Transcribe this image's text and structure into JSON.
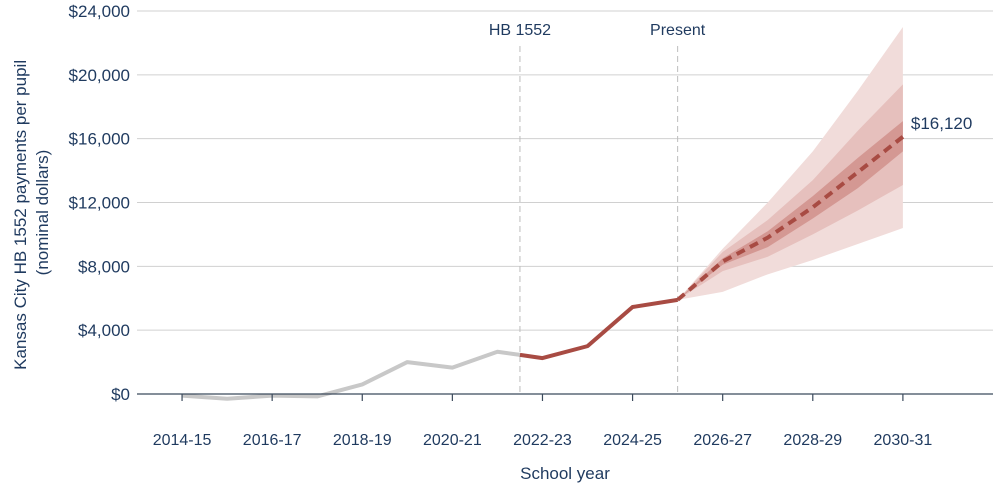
{
  "chart_data": {
    "type": "line",
    "title": "",
    "ylabel_lines": [
      "Kansas City HB 1552 payments per pupil",
      "(nominal dollars)"
    ],
    "xlabel": "School year",
    "ylim": [
      0,
      24000
    ],
    "xlim": [
      2014,
      2033
    ],
    "yticks": [
      {
        "value": 0,
        "label": "$0"
      },
      {
        "value": 4000,
        "label": "$4,000"
      },
      {
        "value": 8000,
        "label": "$8,000"
      },
      {
        "value": 12000,
        "label": "$12,000"
      },
      {
        "value": 16000,
        "label": "$16,000"
      },
      {
        "value": 20000,
        "label": "$20,000"
      },
      {
        "value": 24000,
        "label": "$24,000"
      }
    ],
    "xticks": [
      {
        "value": 2015,
        "label": "2014-15"
      },
      {
        "value": 2017,
        "label": "2016-17"
      },
      {
        "value": 2019,
        "label": "2018-19"
      },
      {
        "value": 2021,
        "label": "2020-21"
      },
      {
        "value": 2023,
        "label": "2022-23"
      },
      {
        "value": 2025,
        "label": "2024-25"
      },
      {
        "value": 2027,
        "label": "2026-27"
      },
      {
        "value": 2029,
        "label": "2028-29"
      },
      {
        "value": 2031,
        "label": "2030-31"
      }
    ],
    "vlines": [
      {
        "x": 2022.5,
        "label": "HB 1552"
      },
      {
        "x": 2026,
        "label": "Present"
      }
    ],
    "series": [
      {
        "style": "pre-policy",
        "color": "#c8c8c8",
        "x": [
          2015,
          2016,
          2017,
          2018,
          2019,
          2020,
          2021,
          2022,
          2022.5
        ],
        "y": [
          -100,
          -300,
          -100,
          -150,
          600,
          2000,
          1650,
          2650,
          2450
        ]
      },
      {
        "style": "actual",
        "color": "#a84b43",
        "x": [
          2022.5,
          2023,
          2024,
          2025,
          2026
        ],
        "y": [
          2450,
          2250,
          3000,
          5450,
          5900
        ]
      },
      {
        "style": "projection",
        "color": "#a84b43",
        "dashed": true,
        "x": [
          2026,
          2027,
          2028,
          2029,
          2030,
          2031
        ],
        "y": [
          5900,
          8300,
          9800,
          11700,
          13900,
          16120
        ]
      }
    ],
    "bands": [
      {
        "color": "#f1dcda",
        "x": [
          2026,
          2027,
          2028,
          2029,
          2030,
          2031
        ],
        "low": [
          5900,
          6400,
          7500,
          8400,
          9400,
          10400
        ],
        "high": [
          5900,
          9100,
          12000,
          15200,
          19000,
          23000
        ]
      },
      {
        "color": "#e6c0bd",
        "x": [
          2026,
          2027,
          2028,
          2029,
          2030,
          2031
        ],
        "low": [
          5900,
          7700,
          8600,
          10000,
          11500,
          13100
        ],
        "high": [
          5900,
          8900,
          10900,
          13400,
          16500,
          19400
        ]
      },
      {
        "color": "#d49893",
        "x": [
          2026,
          2027,
          2028,
          2029,
          2030,
          2031
        ],
        "low": [
          5900,
          8100,
          9200,
          11000,
          12900,
          15200
        ],
        "high": [
          5900,
          8500,
          10200,
          12400,
          14800,
          17100
        ]
      }
    ],
    "end_label": "$16,120",
    "grid": true
  }
}
